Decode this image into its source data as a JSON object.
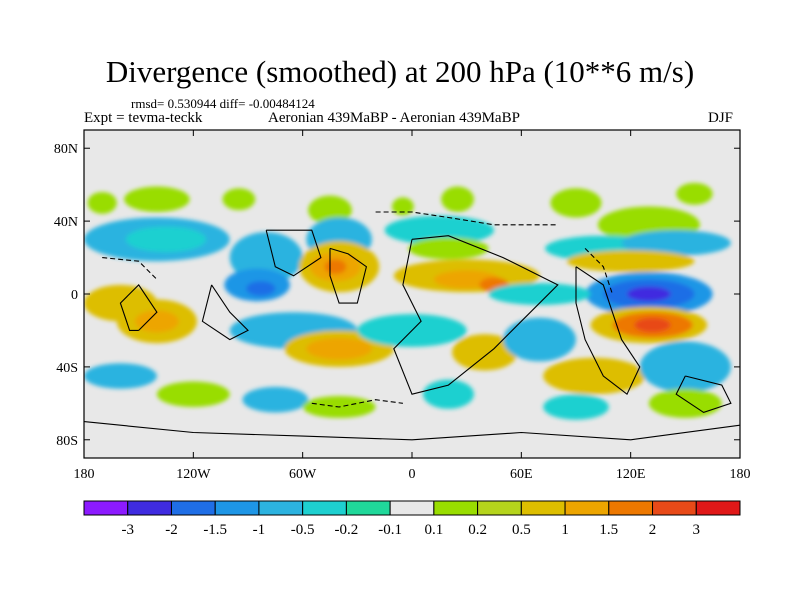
{
  "title": "Divergence (smoothed) at 200 hPa (10**6 m/s)",
  "stats": "rmsd= 0.530944 diff= -0.00484124",
  "experiment": "Expt = tevma-teckk",
  "comparison": "Aeronian 439MaBP - Aeronian 439MaBP",
  "season": "DJF",
  "map": {
    "lon_range": [
      -180,
      180
    ],
    "lat_range": [
      -90,
      90
    ],
    "lat_ticks": [
      {
        "value": 80,
        "label": "80N"
      },
      {
        "value": 40,
        "label": "40N"
      },
      {
        "value": 0,
        "label": "0"
      },
      {
        "value": -40,
        "label": "40S"
      },
      {
        "value": -80,
        "label": "80S"
      }
    ],
    "lon_ticks": [
      {
        "value": -180,
        "label": "180"
      },
      {
        "value": -120,
        "label": "120W"
      },
      {
        "value": -60,
        "label": "60W"
      },
      {
        "value": 0,
        "label": "0"
      },
      {
        "value": 60,
        "label": "60E"
      },
      {
        "value": 120,
        "label": "120E"
      },
      {
        "value": 180,
        "label": "180"
      }
    ],
    "background_color": "#e8e8e8"
  },
  "colorbar": {
    "colors": [
      "#8c1aff",
      "#3f2be0",
      "#1f6ee6",
      "#1e96e6",
      "#2cb3e0",
      "#1ed0d0",
      "#20d89a",
      "#e8e8e8",
      "#99dd00",
      "#b5d41c",
      "#ddbe00",
      "#eda500",
      "#ed7800",
      "#e84a18",
      "#e01818"
    ],
    "labels": [
      "-3",
      "-2",
      "-1.5",
      "-1",
      "-0.5",
      "-0.2",
      "-0.1",
      "0.1",
      "0.2",
      "0.5",
      "1",
      "1.5",
      "2",
      "3"
    ]
  },
  "blobs": [
    {
      "lon": -170,
      "lat": 50,
      "rx": 8,
      "ry": 6,
      "c": "#99dd00"
    },
    {
      "lon": -140,
      "lat": 52,
      "rx": 18,
      "ry": 7,
      "c": "#99dd00"
    },
    {
      "lon": -95,
      "lat": 52,
      "rx": 9,
      "ry": 6,
      "c": "#99dd00"
    },
    {
      "lon": -45,
      "lat": 46,
      "rx": 12,
      "ry": 8,
      "c": "#99dd00"
    },
    {
      "lon": -5,
      "lat": 48,
      "rx": 6,
      "ry": 5,
      "c": "#99dd00"
    },
    {
      "lon": 25,
      "lat": 52,
      "rx": 9,
      "ry": 7,
      "c": "#99dd00"
    },
    {
      "lon": 90,
      "lat": 50,
      "rx": 14,
      "ry": 8,
      "c": "#99dd00"
    },
    {
      "lon": 155,
      "lat": 55,
      "rx": 10,
      "ry": 6,
      "c": "#99dd00"
    },
    {
      "lon": -140,
      "lat": 30,
      "rx": 40,
      "ry": 12,
      "c": "#2cb3e0"
    },
    {
      "lon": -135,
      "lat": 30,
      "rx": 22,
      "ry": 7,
      "c": "#1ed0d0"
    },
    {
      "lon": -40,
      "lat": 30,
      "rx": 18,
      "ry": 12,
      "c": "#2cb3e0"
    },
    {
      "lon": -80,
      "lat": 20,
      "rx": 20,
      "ry": 14,
      "c": "#2cb3e0"
    },
    {
      "lon": -85,
      "lat": 5,
      "rx": 18,
      "ry": 9,
      "c": "#1e96e6"
    },
    {
      "lon": -83,
      "lat": 3,
      "rx": 8,
      "ry": 4,
      "c": "#1f6ee6"
    },
    {
      "lon": -40,
      "lat": 15,
      "rx": 22,
      "ry": 14,
      "c": "#ddbe00"
    },
    {
      "lon": -42,
      "lat": 15,
      "rx": 14,
      "ry": 8,
      "c": "#eda500"
    },
    {
      "lon": -42,
      "lat": 15,
      "rx": 6,
      "ry": 4,
      "c": "#ed7800"
    },
    {
      "lon": 15,
      "lat": 35,
      "rx": 30,
      "ry": 8,
      "c": "#1ed0d0"
    },
    {
      "lon": 20,
      "lat": 25,
      "rx": 22,
      "ry": 6,
      "c": "#99dd00"
    },
    {
      "lon": 30,
      "lat": 10,
      "rx": 40,
      "ry": 9,
      "c": "#ddbe00"
    },
    {
      "lon": 30,
      "lat": 8,
      "rx": 18,
      "ry": 5,
      "c": "#eda500"
    },
    {
      "lon": 45,
      "lat": 5,
      "rx": 8,
      "ry": 4,
      "c": "#ed7800"
    },
    {
      "lon": 130,
      "lat": 38,
      "rx": 28,
      "ry": 10,
      "c": "#99dd00"
    },
    {
      "lon": 105,
      "lat": 25,
      "rx": 32,
      "ry": 7,
      "c": "#1ed0d0"
    },
    {
      "lon": 145,
      "lat": 28,
      "rx": 30,
      "ry": 7,
      "c": "#2cb3e0"
    },
    {
      "lon": 120,
      "lat": 18,
      "rx": 35,
      "ry": 6,
      "c": "#ddbe00"
    },
    {
      "lon": 130,
      "lat": 0,
      "rx": 35,
      "ry": 12,
      "c": "#1e96e6"
    },
    {
      "lon": 130,
      "lat": 0,
      "rx": 25,
      "ry": 8,
      "c": "#1f6ee6"
    },
    {
      "lon": 130,
      "lat": 0,
      "rx": 12,
      "ry": 4,
      "c": "#3f2be0"
    },
    {
      "lon": 70,
      "lat": 0,
      "rx": 28,
      "ry": 6,
      "c": "#1ed0d0"
    },
    {
      "lon": 130,
      "lat": -17,
      "rx": 32,
      "ry": 10,
      "c": "#ddbe00"
    },
    {
      "lon": 132,
      "lat": -17,
      "rx": 22,
      "ry": 7,
      "c": "#ed7800"
    },
    {
      "lon": 132,
      "lat": -17,
      "rx": 10,
      "ry": 4,
      "c": "#e84a18"
    },
    {
      "lon": -160,
      "lat": -5,
      "rx": 20,
      "ry": 10,
      "c": "#ddbe00"
    },
    {
      "lon": -140,
      "lat": -15,
      "rx": 22,
      "ry": 12,
      "c": "#ddbe00"
    },
    {
      "lon": -140,
      "lat": -15,
      "rx": 12,
      "ry": 6,
      "c": "#eda500"
    },
    {
      "lon": -65,
      "lat": -20,
      "rx": 35,
      "ry": 10,
      "c": "#2cb3e0"
    },
    {
      "lon": -40,
      "lat": -30,
      "rx": 30,
      "ry": 10,
      "c": "#ddbe00"
    },
    {
      "lon": -40,
      "lat": -30,
      "rx": 18,
      "ry": 6,
      "c": "#eda500"
    },
    {
      "lon": 0,
      "lat": -20,
      "rx": 30,
      "ry": 9,
      "c": "#1ed0d0"
    },
    {
      "lon": 40,
      "lat": -32,
      "rx": 18,
      "ry": 10,
      "c": "#ddbe00"
    },
    {
      "lon": 70,
      "lat": -25,
      "rx": 20,
      "ry": 12,
      "c": "#2cb3e0"
    },
    {
      "lon": 100,
      "lat": -45,
      "rx": 28,
      "ry": 10,
      "c": "#ddbe00"
    },
    {
      "lon": 150,
      "lat": -40,
      "rx": 25,
      "ry": 14,
      "c": "#2cb3e0"
    },
    {
      "lon": -160,
      "lat": -45,
      "rx": 20,
      "ry": 7,
      "c": "#2cb3e0"
    },
    {
      "lon": -120,
      "lat": -55,
      "rx": 20,
      "ry": 7,
      "c": "#99dd00"
    },
    {
      "lon": -75,
      "lat": -58,
      "rx": 18,
      "ry": 7,
      "c": "#2cb3e0"
    },
    {
      "lon": -40,
      "lat": -62,
      "rx": 20,
      "ry": 6,
      "c": "#99dd00"
    },
    {
      "lon": 20,
      "lat": -55,
      "rx": 14,
      "ry": 8,
      "c": "#1ed0d0"
    },
    {
      "lon": 90,
      "lat": -62,
      "rx": 18,
      "ry": 7,
      "c": "#1ed0d0"
    },
    {
      "lon": 150,
      "lat": -60,
      "rx": 20,
      "ry": 8,
      "c": "#99dd00"
    }
  ],
  "coastlines": [
    {
      "style": "solid",
      "points": [
        [
          -150,
          -20
        ],
        [
          -140,
          -10
        ],
        [
          -150,
          5
        ],
        [
          -160,
          -5
        ],
        [
          -155,
          -20
        ],
        [
          -150,
          -20
        ]
      ]
    },
    {
      "style": "solid",
      "points": [
        [
          -110,
          5
        ],
        [
          -100,
          -10
        ],
        [
          -90,
          -20
        ],
        [
          -100,
          -25
        ],
        [
          -115,
          -15
        ],
        [
          -110,
          5
        ]
      ]
    },
    {
      "style": "solid",
      "points": [
        [
          -80,
          35
        ],
        [
          -55,
          35
        ],
        [
          -50,
          20
        ],
        [
          -65,
          10
        ],
        [
          -75,
          15
        ],
        [
          -80,
          35
        ]
      ]
    },
    {
      "style": "solid",
      "points": [
        [
          -45,
          25
        ],
        [
          -35,
          22
        ],
        [
          -25,
          15
        ],
        [
          -30,
          -5
        ],
        [
          -40,
          -5
        ],
        [
          -45,
          10
        ],
        [
          -45,
          25
        ]
      ]
    },
    {
      "style": "solid",
      "points": [
        [
          0,
          30
        ],
        [
          20,
          32
        ],
        [
          50,
          20
        ],
        [
          80,
          5
        ],
        [
          60,
          -15
        ],
        [
          45,
          -30
        ],
        [
          20,
          -50
        ],
        [
          0,
          -55
        ],
        [
          -10,
          -30
        ],
        [
          5,
          -15
        ],
        [
          -5,
          5
        ],
        [
          0,
          30
        ]
      ]
    },
    {
      "style": "solid",
      "points": [
        [
          90,
          15
        ],
        [
          105,
          5
        ],
        [
          110,
          -10
        ],
        [
          115,
          -25
        ],
        [
          125,
          -40
        ],
        [
          118,
          -55
        ],
        [
          105,
          -45
        ],
        [
          95,
          -25
        ],
        [
          90,
          -5
        ],
        [
          90,
          15
        ]
      ]
    },
    {
      "style": "solid",
      "points": [
        [
          150,
          -45
        ],
        [
          170,
          -50
        ],
        [
          175,
          -60
        ],
        [
          160,
          -65
        ],
        [
          145,
          -55
        ],
        [
          150,
          -45
        ]
      ]
    },
    {
      "style": "solid",
      "points": [
        [
          -180,
          -70
        ],
        [
          -120,
          -76
        ],
        [
          -60,
          -78
        ],
        [
          0,
          -80
        ],
        [
          60,
          -76
        ],
        [
          120,
          -80
        ],
        [
          180,
          -72
        ]
      ]
    },
    {
      "style": "dashed",
      "points": [
        [
          -170,
          20
        ],
        [
          -150,
          18
        ],
        [
          -140,
          8
        ]
      ]
    },
    {
      "style": "dashed",
      "points": [
        [
          -20,
          45
        ],
        [
          0,
          45
        ],
        [
          20,
          42
        ],
        [
          45,
          38
        ],
        [
          80,
          38
        ]
      ]
    },
    {
      "style": "dashed",
      "points": [
        [
          95,
          25
        ],
        [
          105,
          15
        ],
        [
          110,
          0
        ]
      ]
    },
    {
      "style": "dashed",
      "points": [
        [
          -55,
          -60
        ],
        [
          -40,
          -62
        ],
        [
          -20,
          -58
        ],
        [
          -5,
          -60
        ]
      ]
    }
  ]
}
